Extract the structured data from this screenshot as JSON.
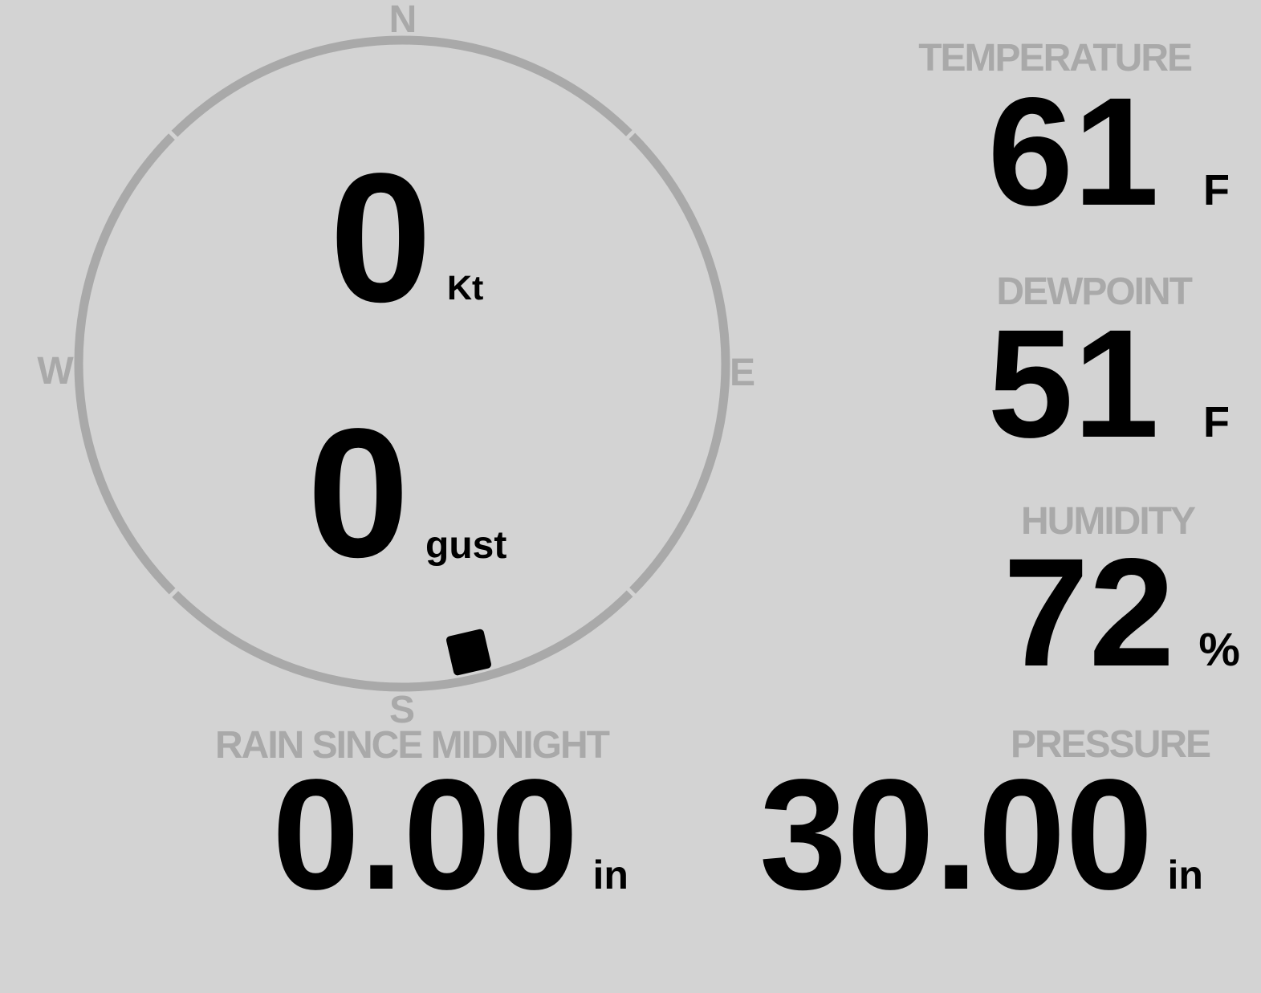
{
  "colors": {
    "background": "#d3d3d3",
    "muted": "#a9a9a9",
    "ink": "#000000"
  },
  "compass": {
    "cardinals": {
      "n": "N",
      "e": "E",
      "s": "S",
      "w": "W"
    },
    "speed": {
      "value": "0",
      "unit": "Kt"
    },
    "gust": {
      "value": "0",
      "unit": "gust"
    },
    "direction_marker_deg": 167
  },
  "metrics": {
    "temperature": {
      "label": "TEMPERATURE",
      "value": "61",
      "unit": "F"
    },
    "dewpoint": {
      "label": "DEWPOINT",
      "value": "51",
      "unit": "F"
    },
    "humidity": {
      "label": "HUMIDITY",
      "value": "72",
      "unit": "%"
    },
    "rain": {
      "label": "RAIN SINCE MIDNIGHT",
      "value": "0.00",
      "unit": "in"
    },
    "pressure": {
      "label": "PRESSURE",
      "value": "30.00",
      "unit": "in"
    }
  }
}
